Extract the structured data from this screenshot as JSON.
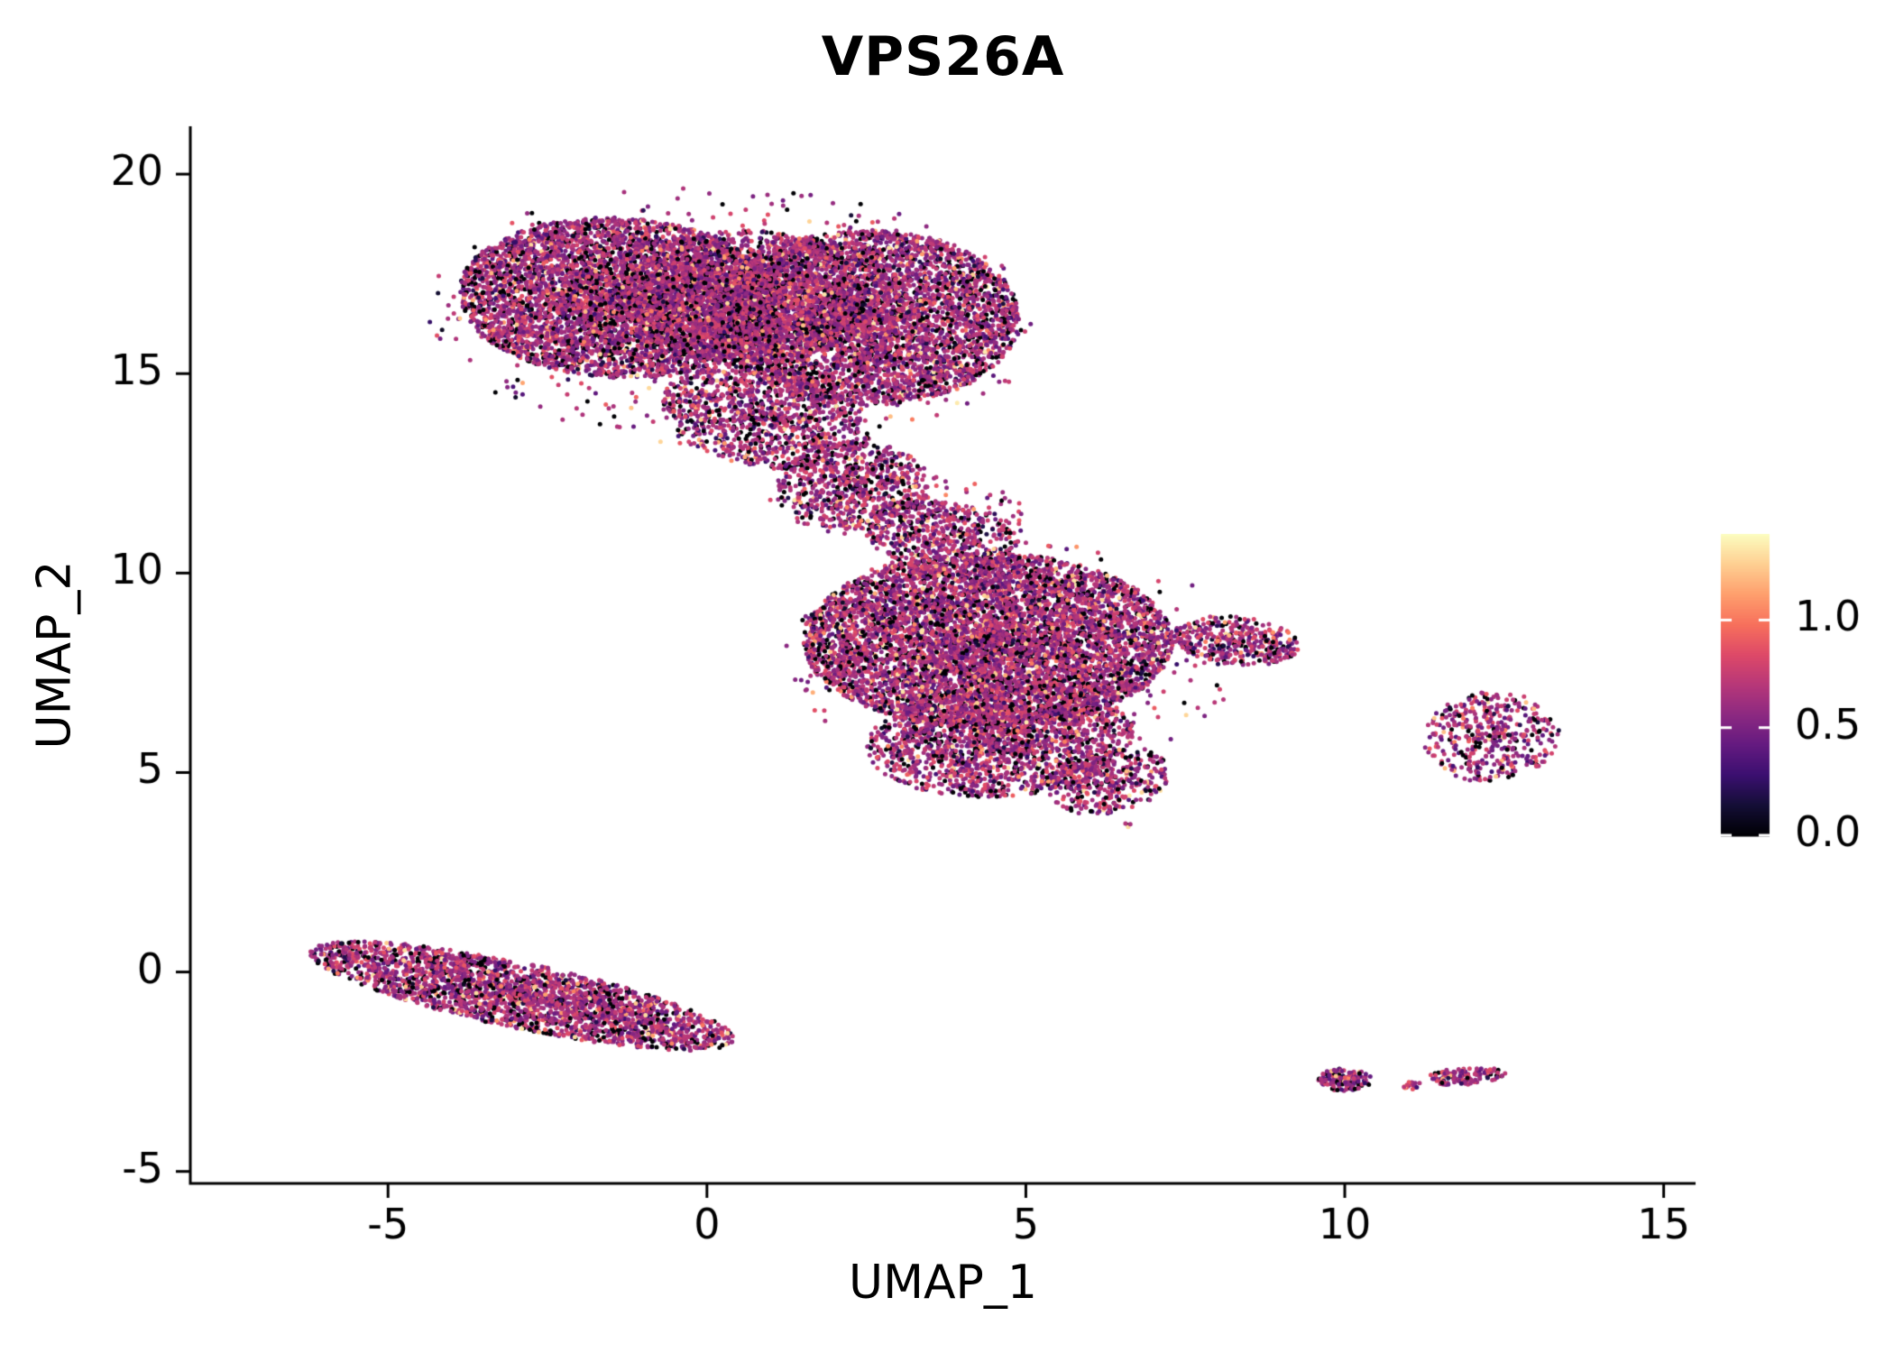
{
  "figure": {
    "background": "#ffffff",
    "axis_color": "#000000",
    "text_color": "#000000"
  },
  "chart_data": {
    "type": "scatter",
    "title": "VPS26A",
    "xlabel": "UMAP_1",
    "ylabel": "UMAP_2",
    "xlim": [
      -8.1,
      15.5
    ],
    "ylim": [
      -5.3,
      21.2
    ],
    "xticks": [
      -5,
      0,
      5,
      10,
      15
    ],
    "xtick_labels": [
      "-5",
      "0",
      "5",
      "10",
      "15"
    ],
    "yticks": [
      -5,
      0,
      5,
      10,
      15,
      20
    ],
    "ytick_labels": [
      "-5",
      "0",
      "5",
      "10",
      "15",
      "20"
    ],
    "grid": false,
    "legend_position": "right",
    "point_radius_px": 2.5,
    "radial_power": 0.6,
    "seed": 42,
    "colorbar": {
      "label": "",
      "ticks": [
        0.0,
        0.5,
        1.0
      ],
      "tick_labels": [
        "0.0",
        "0.5",
        "1.0"
      ],
      "vmin": 0.0,
      "vmax": 1.4,
      "colormap": "magma",
      "stops": [
        "#000004",
        "#140e36",
        "#3b0f70",
        "#641a80",
        "#8c2981",
        "#b73779",
        "#de4968",
        "#f7705c",
        "#fe9f6d",
        "#fecf92",
        "#fcfdbf"
      ]
    },
    "value_distribution": {
      "p_zero": 0.14,
      "p_low": 0.06,
      "p_high": 0.05,
      "low": [
        0.08,
        0.3
      ],
      "mid": [
        0.35,
        0.3
      ],
      "high": [
        1.0,
        0.35
      ]
    },
    "clusters": [
      {
        "name": "top-cluster-halo",
        "cx": 0.4,
        "cy": 16.4,
        "rx": 4.8,
        "ry": 3.3,
        "rot": -6,
        "n": 550
      },
      {
        "name": "mid-cluster-halo",
        "cx": 4.8,
        "cy": 7.9,
        "rx": 3.6,
        "ry": 2.9,
        "rot": 0,
        "n": 380
      },
      {
        "name": "neck-scatter",
        "cx": 3.0,
        "cy": 11.7,
        "rx": 2.1,
        "ry": 1.0,
        "rot": -10,
        "n": 220
      },
      {
        "name": "top-left-lobe",
        "cx": -1.4,
        "cy": 16.9,
        "rx": 2.5,
        "ry": 2.0,
        "rot": -8,
        "n": 5200
      },
      {
        "name": "top-right-lobe",
        "cx": 2.5,
        "cy": 16.4,
        "rx": 2.4,
        "ry": 2.2,
        "rot": 0,
        "n": 4800
      },
      {
        "name": "top-center-core",
        "cx": 0.6,
        "cy": 16.9,
        "rx": 1.9,
        "ry": 1.7,
        "rot": 0,
        "n": 2200
      },
      {
        "name": "top-bridge",
        "cx": 0.9,
        "cy": 13.9,
        "rx": 1.7,
        "ry": 1.2,
        "rot": -25,
        "n": 1100
      },
      {
        "name": "neck-upper",
        "cx": 2.3,
        "cy": 12.2,
        "rx": 1.2,
        "ry": 1.1,
        "rot": 0,
        "n": 650
      },
      {
        "name": "neck-lower",
        "cx": 3.7,
        "cy": 10.9,
        "rx": 1.2,
        "ry": 0.9,
        "rot": -15,
        "n": 500
      },
      {
        "name": "mid-main",
        "cx": 4.4,
        "cy": 8.3,
        "rx": 2.9,
        "ry": 2.2,
        "rot": 0,
        "n": 6500
      },
      {
        "name": "mid-lower",
        "cx": 4.6,
        "cy": 5.8,
        "rx": 2.1,
        "ry": 1.4,
        "rot": 8,
        "n": 1800
      },
      {
        "name": "mid-lower-tip",
        "cx": 6.3,
        "cy": 4.8,
        "rx": 1.0,
        "ry": 0.8,
        "rot": 35,
        "n": 380
      },
      {
        "name": "mid-right-tip",
        "cx": 8.3,
        "cy": 8.3,
        "rx": 1.0,
        "ry": 0.6,
        "rot": -12,
        "n": 380
      },
      {
        "name": "left-strip",
        "cx": -2.9,
        "cy": -0.6,
        "rx": 3.5,
        "ry": 0.8,
        "rot": -19,
        "n": 2600
      },
      {
        "name": "right-island",
        "cx": 12.3,
        "cy": 5.9,
        "rx": 1.05,
        "ry": 1.15,
        "rot": -20,
        "n": 430
      },
      {
        "name": "small-island-a",
        "cx": 10.0,
        "cy": -2.7,
        "rx": 0.42,
        "ry": 0.28,
        "rot": 0,
        "n": 140
      },
      {
        "name": "small-island-b",
        "cx": 11.05,
        "cy": -2.85,
        "rx": 0.16,
        "ry": 0.1,
        "rot": 0,
        "n": 20
      },
      {
        "name": "small-island-c",
        "cx": 11.9,
        "cy": -2.6,
        "rx": 0.62,
        "ry": 0.22,
        "rot": 8,
        "n": 120
      },
      {
        "name": "stray-points",
        "cx": 6.7,
        "cy": 3.7,
        "rx": 0.15,
        "ry": 0.12,
        "rot": 0,
        "n": 4
      }
    ]
  }
}
